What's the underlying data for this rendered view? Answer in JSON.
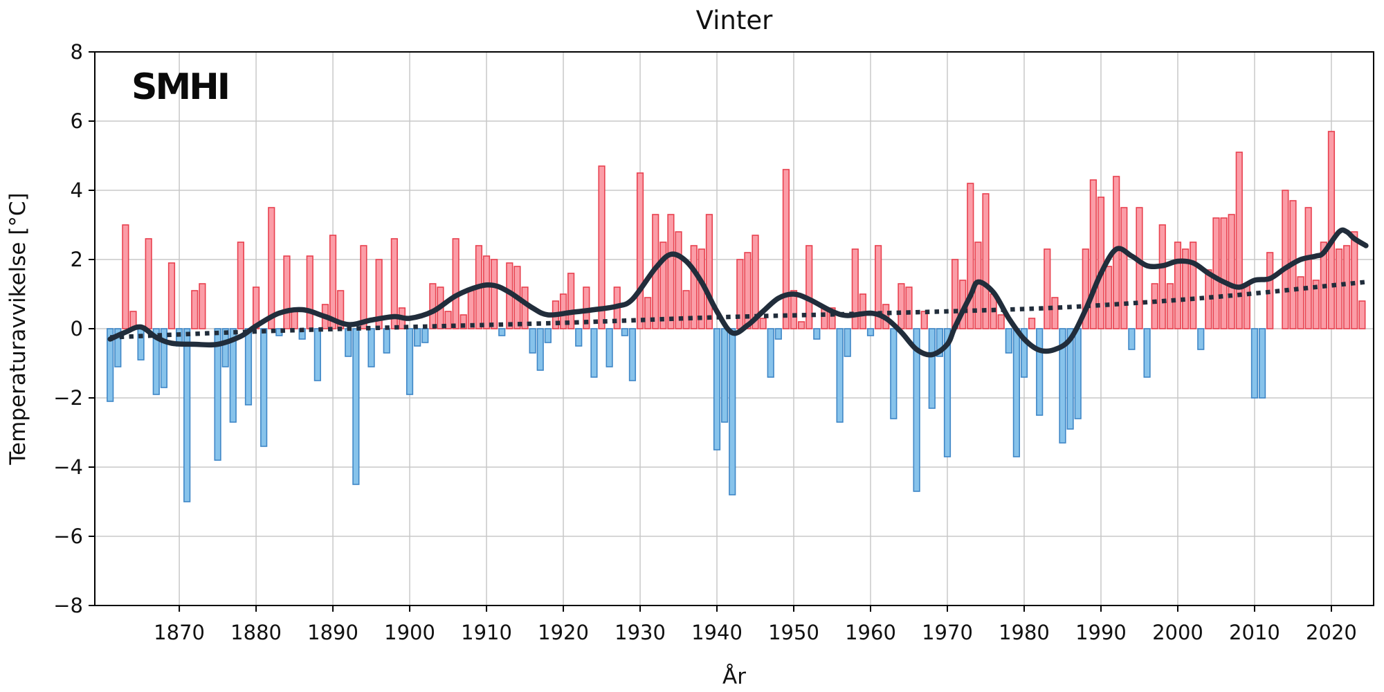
{
  "title": "Vinter",
  "logo_text": "SMHI",
  "axes": {
    "xlabel": "År",
    "ylabel": "Temperaturavvikelse [°C]",
    "yticks": [
      -8,
      -6,
      -4,
      -2,
      0,
      2,
      4,
      6,
      8
    ],
    "xticks": [
      1870,
      1880,
      1890,
      1900,
      1910,
      1920,
      1930,
      1940,
      1950,
      1960,
      1970,
      1980,
      1990,
      2000,
      2010,
      2020
    ],
    "ylim": [
      -8,
      8
    ],
    "xlim": [
      1859,
      2025.5
    ]
  },
  "colors": {
    "bar_positive_fill": "#FB9DA7",
    "bar_positive_edge": "#E8404E",
    "bar_negative_fill": "#87C3EB",
    "bar_negative_edge": "#3E86C6",
    "line_dark": "#212D3B",
    "grid": "#C8C8C8",
    "spine": "#000000",
    "text": "#111111",
    "background": "#FFFFFF"
  },
  "chart_data": {
    "type": "bar",
    "title": "Vinter",
    "xlabel": "År",
    "ylabel": "Temperaturavvikelse [°C]",
    "ylim": [
      -8,
      8
    ],
    "xlim": [
      1859,
      2025.5
    ],
    "grid": true,
    "bar_year_start": 1861,
    "bar_values": [
      -2.1,
      -1.1,
      3.0,
      0.5,
      -0.9,
      2.6,
      -1.9,
      -1.7,
      1.9,
      -0.5,
      -5.0,
      1.1,
      1.3,
      0.0,
      -3.8,
      -1.1,
      -2.7,
      2.5,
      -2.2,
      1.2,
      -3.4,
      3.5,
      -0.2,
      2.1,
      0.5,
      -0.3,
      2.1,
      -1.5,
      0.7,
      2.7,
      1.1,
      -0.8,
      -4.5,
      2.4,
      -1.1,
      2.0,
      -0.7,
      2.6,
      0.6,
      -1.9,
      -0.5,
      -0.4,
      1.3,
      1.2,
      0.5,
      2.6,
      0.4,
      1.1,
      2.4,
      2.1,
      2.0,
      -0.2,
      1.9,
      1.8,
      1.2,
      -0.7,
      -1.2,
      -0.4,
      0.8,
      1.0,
      1.6,
      -0.5,
      1.2,
      -1.4,
      4.7,
      -1.1,
      1.2,
      -0.2,
      -1.5,
      4.5,
      0.9,
      3.3,
      2.5,
      3.3,
      2.8,
      1.1,
      2.4,
      2.3,
      3.3,
      -3.5,
      -2.7,
      -4.8,
      2.0,
      2.2,
      2.7,
      0.3,
      -1.4,
      -0.3,
      4.6,
      1.1,
      0.2,
      2.4,
      -0.3,
      0.6,
      0.6,
      -2.7,
      -0.8,
      2.3,
      1.0,
      -0.2,
      2.4,
      0.7,
      -2.6,
      1.3,
      1.2,
      -4.7,
      0.5,
      -2.3,
      -0.8,
      -3.7,
      2.0,
      1.4,
      4.2,
      2.5,
      3.9,
      1.0,
      0.4,
      -0.7,
      -3.7,
      -1.4,
      0.3,
      -2.5,
      2.3,
      0.9,
      -3.3,
      -2.9,
      -2.6,
      2.3,
      4.3,
      3.8,
      1.8,
      4.4,
      3.5,
      -0.6,
      3.5,
      -1.4,
      1.3,
      3.0,
      1.3,
      2.5,
      2.3,
      2.5,
      -0.6,
      1.7,
      3.2,
      3.2,
      3.3,
      5.1,
      1.3,
      -2.0,
      -2.0,
      2.2,
      0.0,
      4.0,
      3.7,
      1.5,
      3.5,
      1.4,
      2.5,
      5.7,
      2.3,
      2.4,
      2.8,
      0.8
    ],
    "series": [
      {
        "name": "smoothed-curve",
        "style": "solid",
        "points": [
          [
            1861,
            -0.3
          ],
          [
            1863,
            -0.1
          ],
          [
            1865,
            0.05
          ],
          [
            1867,
            -0.25
          ],
          [
            1869,
            -0.42
          ],
          [
            1872,
            -0.45
          ],
          [
            1875,
            -0.45
          ],
          [
            1878,
            -0.22
          ],
          [
            1880,
            0.08
          ],
          [
            1883,
            0.45
          ],
          [
            1886,
            0.55
          ],
          [
            1889,
            0.35
          ],
          [
            1892,
            0.12
          ],
          [
            1895,
            0.25
          ],
          [
            1898,
            0.35
          ],
          [
            1900,
            0.3
          ],
          [
            1903,
            0.5
          ],
          [
            1906,
            0.95
          ],
          [
            1909,
            1.22
          ],
          [
            1911,
            1.25
          ],
          [
            1913,
            1.05
          ],
          [
            1916,
            0.6
          ],
          [
            1918,
            0.4
          ],
          [
            1921,
            0.47
          ],
          [
            1924,
            0.55
          ],
          [
            1927,
            0.65
          ],
          [
            1929,
            0.85
          ],
          [
            1932,
            1.75
          ],
          [
            1934,
            2.15
          ],
          [
            1936,
            1.95
          ],
          [
            1938,
            1.35
          ],
          [
            1940,
            0.5
          ],
          [
            1942,
            -0.12
          ],
          [
            1944,
            0.1
          ],
          [
            1946,
            0.5
          ],
          [
            1948,
            0.88
          ],
          [
            1950,
            1.0
          ],
          [
            1952,
            0.85
          ],
          [
            1955,
            0.5
          ],
          [
            1957,
            0.38
          ],
          [
            1960,
            0.45
          ],
          [
            1962,
            0.3
          ],
          [
            1964,
            -0.1
          ],
          [
            1966,
            -0.6
          ],
          [
            1968,
            -0.75
          ],
          [
            1970,
            -0.45
          ],
          [
            1971,
            0.05
          ],
          [
            1973,
            0.95
          ],
          [
            1974,
            1.35
          ],
          [
            1976,
            1.05
          ],
          [
            1978,
            0.3
          ],
          [
            1980,
            -0.3
          ],
          [
            1982,
            -0.62
          ],
          [
            1984,
            -0.6
          ],
          [
            1986,
            -0.3
          ],
          [
            1988,
            0.55
          ],
          [
            1990,
            1.6
          ],
          [
            1992,
            2.3
          ],
          [
            1994,
            2.1
          ],
          [
            1996,
            1.82
          ],
          [
            1998,
            1.82
          ],
          [
            2000,
            1.95
          ],
          [
            2002,
            1.9
          ],
          [
            2004,
            1.6
          ],
          [
            2006,
            1.35
          ],
          [
            2008,
            1.2
          ],
          [
            2010,
            1.4
          ],
          [
            2012,
            1.45
          ],
          [
            2014,
            1.75
          ],
          [
            2016,
            2.0
          ],
          [
            2018,
            2.1
          ],
          [
            2019,
            2.2
          ],
          [
            2021,
            2.8
          ],
          [
            2022,
            2.8
          ],
          [
            2023,
            2.6
          ],
          [
            2024.5,
            2.4
          ]
        ]
      },
      {
        "name": "trend-line",
        "style": "dotted",
        "points": [
          [
            1861,
            -0.25
          ],
          [
            1880,
            -0.08
          ],
          [
            1900,
            0.05
          ],
          [
            1920,
            0.17
          ],
          [
            1940,
            0.33
          ],
          [
            1960,
            0.44
          ],
          [
            1980,
            0.57
          ],
          [
            1990,
            0.68
          ],
          [
            2000,
            0.83
          ],
          [
            2010,
            1.02
          ],
          [
            2020,
            1.25
          ],
          [
            2024.5,
            1.35
          ]
        ]
      }
    ]
  }
}
